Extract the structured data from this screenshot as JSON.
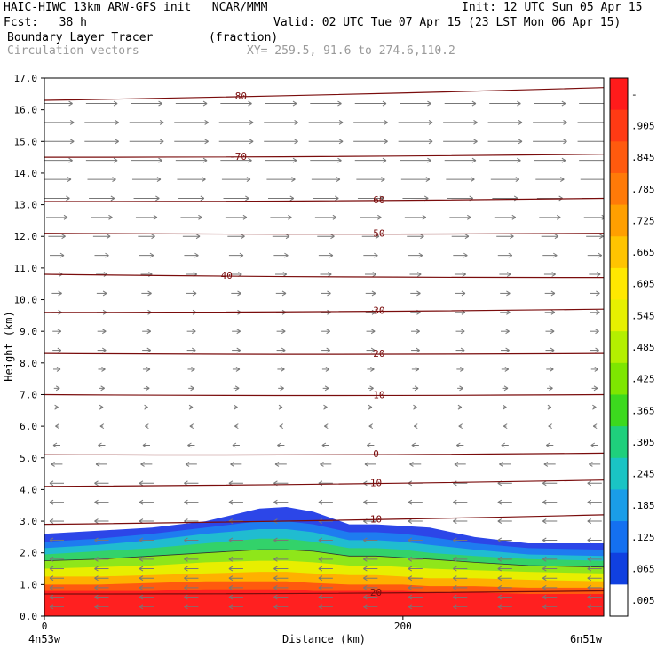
{
  "header": {
    "model_line": "HAIC-HIWC 13km ARW-GFS init   NCAR/MMM",
    "init_line": "Init: 12 UTC Sun 05 Apr 15",
    "fcst_line": "Fcst:   38 h",
    "valid_line": "Valid: 02 UTC Tue 07 Apr 15 (23 LST Mon 06 Apr 15)",
    "field_line": "Boundary Layer Tracer        (fraction)",
    "vectors_line": "Circulation vectors",
    "xy_line": "XY= 259.5, 91.6 to 274.6,110.2"
  },
  "footer": {
    "left_endpoint": "4n53w",
    "right_endpoint": "6n51w"
  },
  "chart_data": {
    "type": "heatmap",
    "title": "Boundary Layer Tracer",
    "units": "(fraction)",
    "xlabel": "Distance (km)",
    "ylabel": "Height (km)",
    "xlim": [
      0,
      312
    ],
    "ylim": [
      0,
      17
    ],
    "x_ticks": [
      {
        "value": 0,
        "label": "0"
      },
      {
        "value": 200,
        "label": "200"
      }
    ],
    "y_ticks": [
      {
        "value": 0,
        "label": "0.0"
      },
      {
        "value": 1,
        "label": "1.0"
      },
      {
        "value": 2,
        "label": "2.0"
      },
      {
        "value": 3,
        "label": "3.0"
      },
      {
        "value": 4,
        "label": "4.0"
      },
      {
        "value": 5,
        "label": "5.0"
      },
      {
        "value": 6,
        "label": "6.0"
      },
      {
        "value": 7,
        "label": "7.0"
      },
      {
        "value": 8,
        "label": "8.0"
      },
      {
        "value": 9,
        "label": "9.0"
      },
      {
        "value": 10,
        "label": "10.0"
      },
      {
        "value": 11,
        "label": "11.0"
      },
      {
        "value": 12,
        "label": "12.0"
      },
      {
        "value": 13,
        "label": "13.0"
      },
      {
        "value": 14,
        "label": "14.0"
      },
      {
        "value": 15,
        "label": "15.0"
      },
      {
        "value": 16,
        "label": "16.0"
      },
      {
        "value": 17,
        "label": "17.0"
      }
    ],
    "colorbar": {
      "labels": [
        "-",
        ".905",
        ".845",
        ".785",
        ".725",
        ".665",
        ".605",
        ".545",
        ".485",
        ".425",
        ".365",
        ".305",
        ".245",
        ".185",
        ".125",
        ".065",
        ".005"
      ],
      "colors": [
        "#ff1b1b",
        "#ff3a14",
        "#ff5a0e",
        "#ff7a08",
        "#ff9f00",
        "#ffc400",
        "#ffe800",
        "#e6f000",
        "#b4ef00",
        "#7ee600",
        "#3cd91e",
        "#1fd07c",
        "#1ac4c4",
        "#1a9de8",
        "#1470f0",
        "#1040e0",
        "#ffffff"
      ]
    },
    "tracer_top_km": {
      "x": [
        0,
        30,
        60,
        90,
        120,
        135,
        150,
        170,
        185,
        200,
        215,
        240,
        270,
        312
      ],
      "y": [
        2.6,
        2.7,
        2.8,
        3.0,
        3.4,
        3.45,
        3.3,
        2.9,
        2.9,
        2.85,
        2.8,
        2.5,
        2.3,
        2.3
      ]
    },
    "tracer_layers": [
      {
        "fraction": 0.005,
        "color": "#2c46e8",
        "top": [
          2.6,
          2.7,
          2.8,
          3.0,
          3.4,
          3.45,
          3.3,
          2.9,
          2.9,
          2.85,
          2.8,
          2.5,
          2.3,
          2.3
        ]
      },
      {
        "fraction": 0.125,
        "color": "#1e7cf0",
        "top": [
          2.35,
          2.45,
          2.6,
          2.8,
          3.0,
          3.0,
          2.9,
          2.65,
          2.65,
          2.6,
          2.5,
          2.3,
          2.15,
          2.1
        ]
      },
      {
        "fraction": 0.245,
        "color": "#20bcd0",
        "top": [
          2.15,
          2.25,
          2.4,
          2.6,
          2.75,
          2.75,
          2.65,
          2.4,
          2.4,
          2.35,
          2.25,
          2.1,
          1.95,
          1.9
        ]
      },
      {
        "fraction": 0.365,
        "color": "#33d26a",
        "top": [
          1.95,
          2.05,
          2.15,
          2.3,
          2.45,
          2.45,
          2.35,
          2.15,
          2.15,
          2.1,
          2.0,
          1.9,
          1.8,
          1.75
        ]
      },
      {
        "fraction": 0.485,
        "color": "#8fe61a",
        "top": [
          1.75,
          1.8,
          1.9,
          2.0,
          2.1,
          2.1,
          2.05,
          1.9,
          1.9,
          1.85,
          1.8,
          1.7,
          1.6,
          1.55
        ]
      },
      {
        "fraction": 0.605,
        "color": "#e8ee00",
        "top": [
          1.5,
          1.55,
          1.6,
          1.7,
          1.75,
          1.75,
          1.7,
          1.6,
          1.6,
          1.55,
          1.5,
          1.45,
          1.4,
          1.35
        ]
      },
      {
        "fraction": 0.725,
        "color": "#ffb000",
        "top": [
          1.25,
          1.25,
          1.3,
          1.35,
          1.4,
          1.4,
          1.35,
          1.3,
          1.3,
          1.25,
          1.2,
          1.2,
          1.15,
          1.1
        ]
      },
      {
        "fraction": 0.845,
        "color": "#ff5a0e",
        "top": [
          1.0,
          1.0,
          1.05,
          1.1,
          1.1,
          1.1,
          1.05,
          1.0,
          1.0,
          1.0,
          0.95,
          0.95,
          0.9,
          0.9
        ]
      },
      {
        "fraction": 0.905,
        "color": "#ff2020",
        "top": [
          0.8,
          0.8,
          0.8,
          0.85,
          0.85,
          0.85,
          0.8,
          0.8,
          0.8,
          0.8,
          0.75,
          0.75,
          0.7,
          0.7
        ]
      }
    ],
    "contour_lines_km": [
      {
        "label": "-80",
        "left": 16.3,
        "right": 16.7,
        "label_x": [
          108,
          370
        ]
      },
      {
        "label": "-70",
        "left": 14.5,
        "right": 14.6,
        "label_x": [
          108,
          370
        ]
      },
      {
        "label": "-60",
        "left": 13.1,
        "right": 13.2,
        "label_x": [
          185
        ]
      },
      {
        "label": "-50",
        "left": 12.1,
        "right": 12.1,
        "label_x": [
          185
        ]
      },
      {
        "label": "-40",
        "left": 10.8,
        "right": 10.7,
        "label_x": [
          100
        ]
      },
      {
        "label": "-30",
        "left": 9.6,
        "right": 9.7,
        "label_x": [
          185
        ]
      },
      {
        "label": "-20",
        "left": 8.3,
        "right": 8.3,
        "label_x": [
          185
        ]
      },
      {
        "label": "-10",
        "left": 7.0,
        "right": 7.0,
        "label_x": [
          185
        ]
      },
      {
        "label": "0",
        "left": 5.1,
        "right": 5.15,
        "label_x": [
          185
        ]
      },
      {
        "label": "10",
        "left": 4.1,
        "right": 4.3,
        "label_x": [
          185
        ]
      },
      {
        "label": "10",
        "left": 2.9,
        "right": 3.2,
        "label_x": [
          185
        ]
      },
      {
        "label": "20",
        "left": 0.7,
        "right": 0.8,
        "label_x": [
          185
        ]
      }
    ],
    "vectors": {
      "levels_km": [
        0.3,
        0.6,
        0.9,
        1.2,
        1.5,
        1.8,
        2.4,
        3.0,
        3.6,
        4.2,
        4.8,
        5.4,
        6.0,
        6.6,
        7.2,
        7.8,
        8.4,
        9.0,
        9.6,
        10.2,
        10.8,
        11.4,
        12.0,
        12.6,
        13.2,
        13.8,
        14.4,
        15.0,
        15.6,
        16.2
      ],
      "u_by_level": [
        -1,
        -1,
        -1,
        -1,
        -1,
        -1,
        -1,
        -1,
        -1,
        -1,
        -0.8,
        -0.5,
        -0.2,
        0.2,
        0.4,
        0.5,
        0.6,
        0.6,
        0.7,
        0.7,
        0.8,
        1.0,
        1.2,
        1.5,
        1.8,
        2.0,
        2.2,
        2.4,
        2.4,
        2.2
      ],
      "columns_km": [
        0,
        25,
        50,
        75,
        100,
        125,
        150,
        175,
        200,
        225,
        250,
        275,
        300
      ]
    }
  }
}
